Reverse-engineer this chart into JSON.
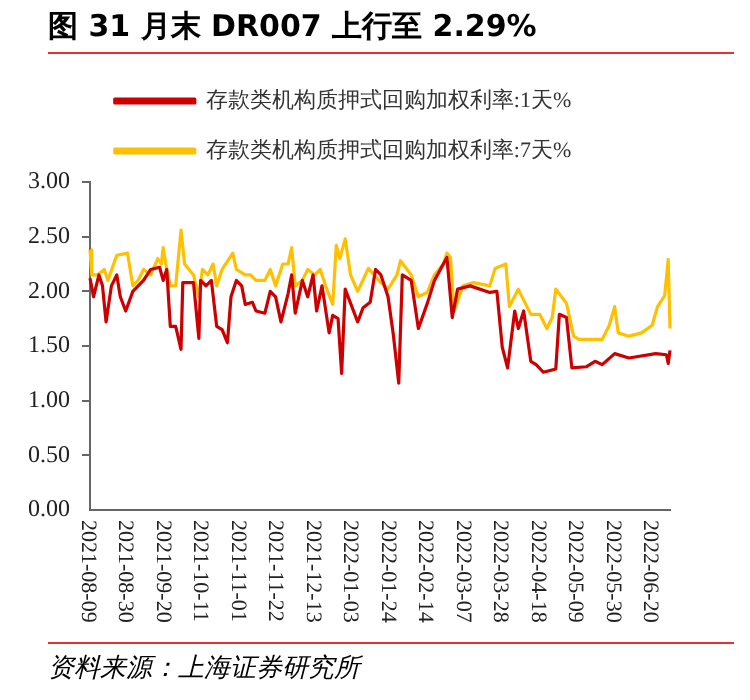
{
  "chart_data": {
    "type": "line",
    "title": "图 31 月末 DR007 上行至 2.29%",
    "legend": "top",
    "grid": false,
    "marker": "none",
    "line_style": "solid",
    "xlim": [
      "2021-08-09",
      "2022-06-30"
    ],
    "xticks": [
      "2021-08-09",
      "2021-08-30",
      "2021-09-20",
      "2021-10-11",
      "2021-11-01",
      "2021-11-22",
      "2021-12-13",
      "2022-01-03",
      "2022-01-24",
      "2022-02-14",
      "2022-03-07",
      "2022-03-28",
      "2022-04-18",
      "2022-05-09",
      "2022-05-30",
      "2022-06-20"
    ],
    "ylim": [
      0,
      3
    ],
    "yticks": [
      {
        "value": 0,
        "label": "0.00"
      },
      {
        "value": 0.5,
        "label": "0.50"
      },
      {
        "value": 1,
        "label": "1.00"
      },
      {
        "value": 1.5,
        "label": "1.50"
      },
      {
        "value": 2,
        "label": "2.00"
      },
      {
        "value": 2.5,
        "label": "2.50"
      },
      {
        "value": 3,
        "label": "3.00"
      }
    ],
    "series": [
      {
        "name": "存款类机构质押式回购加权利率:1天%",
        "color": "#cc0000",
        "x": [
          "2021-08-09",
          "2021-08-11",
          "2021-08-14",
          "2021-08-16",
          "2021-08-18",
          "2021-08-21",
          "2021-08-24",
          "2021-08-26",
          "2021-08-29",
          "2021-09-02",
          "2021-09-05",
          "2021-09-08",
          "2021-09-12",
          "2021-09-17",
          "2021-09-19",
          "2021-09-21",
          "2021-09-23",
          "2021-09-26",
          "2021-09-29",
          "2021-09-30",
          "2021-10-06",
          "2021-10-09",
          "2021-10-10",
          "2021-10-13",
          "2021-10-16",
          "2021-10-19",
          "2021-10-22",
          "2021-10-25",
          "2021-10-27",
          "2021-10-30",
          "2021-11-02",
          "2021-11-04",
          "2021-11-08",
          "2021-11-10",
          "2021-11-15",
          "2021-11-18",
          "2021-11-21",
          "2021-11-24",
          "2021-11-28",
          "2021-11-30",
          "2021-12-02",
          "2021-12-06",
          "2021-12-09",
          "2021-12-12",
          "2021-12-14",
          "2021-12-17",
          "2021-12-21",
          "2021-12-23",
          "2021-12-26",
          "2021-12-28",
          "2021-12-30",
          "2022-01-06",
          "2022-01-09",
          "2022-01-13",
          "2022-01-16",
          "2022-01-19",
          "2022-01-23",
          "2022-01-26",
          "2022-01-29",
          "2022-01-31",
          "2022-02-05",
          "2022-02-09",
          "2022-02-14",
          "2022-02-18",
          "2022-02-23",
          "2022-02-25",
          "2022-02-28",
          "2022-03-03",
          "2022-03-10",
          "2022-03-21",
          "2022-03-25",
          "2022-03-28",
          "2022-03-31",
          "2022-04-04",
          "2022-04-06",
          "2022-04-09",
          "2022-04-13",
          "2022-04-16",
          "2022-04-20",
          "2022-04-27",
          "2022-04-29",
          "2022-05-03",
          "2022-05-06",
          "2022-05-14",
          "2022-05-19",
          "2022-05-23",
          "2022-05-30",
          "2022-06-07",
          "2022-06-22",
          "2022-06-28",
          "2022-06-29",
          "2022-06-30"
        ],
        "values": [
          2.12,
          1.95,
          2.15,
          2.05,
          1.72,
          2.05,
          2.15,
          1.95,
          1.82,
          2.0,
          2.05,
          2.1,
          2.2,
          2.22,
          2.1,
          2.2,
          1.68,
          1.68,
          1.47,
          2.08,
          2.08,
          1.57,
          2.1,
          2.05,
          2.1,
          1.68,
          1.65,
          1.53,
          1.95,
          2.1,
          2.05,
          1.88,
          1.9,
          1.82,
          1.8,
          2.0,
          1.95,
          1.72,
          1.98,
          2.15,
          1.8,
          2.1,
          1.95,
          2.15,
          1.82,
          2.05,
          1.62,
          1.78,
          1.75,
          1.25,
          2.02,
          1.72,
          1.85,
          1.9,
          2.2,
          2.15,
          1.95,
          1.6,
          1.16,
          2.15,
          2.1,
          1.66,
          1.89,
          2.1,
          2.25,
          2.31,
          1.76,
          2.02,
          2.05,
          1.99,
          2.0,
          1.49,
          1.3,
          1.82,
          1.66,
          1.82,
          1.36,
          1.33,
          1.26,
          1.29,
          1.79,
          1.76,
          1.3,
          1.31,
          1.36,
          1.33,
          1.43,
          1.39,
          1.43,
          1.42,
          1.34,
          1.46
        ]
      },
      {
        "name": "存款类机构质押式回购加权利率:7天%",
        "color": "#ffc000",
        "x": [
          "2021-08-09",
          "2021-08-10",
          "2021-08-13",
          "2021-08-17",
          "2021-08-19",
          "2021-08-24",
          "2021-08-30",
          "2021-09-02",
          "2021-09-05",
          "2021-09-08",
          "2021-09-12",
          "2021-09-16",
          "2021-09-18",
          "2021-09-19",
          "2021-09-21",
          "2021-09-23",
          "2021-09-26",
          "2021-09-29",
          "2021-10-01",
          "2021-10-06",
          "2021-10-09",
          "2021-10-11",
          "2021-10-14",
          "2021-10-17",
          "2021-10-19",
          "2021-10-22",
          "2021-10-26",
          "2021-10-28",
          "2021-10-30",
          "2021-11-04",
          "2021-11-07",
          "2021-11-10",
          "2021-11-15",
          "2021-11-18",
          "2021-11-21",
          "2021-11-25",
          "2021-11-28",
          "2021-11-30",
          "2021-12-02",
          "2021-12-06",
          "2021-12-09",
          "2021-12-13",
          "2021-12-16",
          "2021-12-19",
          "2021-12-23",
          "2021-12-25",
          "2021-12-27",
          "2021-12-30",
          "2022-01-02",
          "2022-01-06",
          "2022-01-12",
          "2022-01-19",
          "2022-01-23",
          "2022-01-28",
          "2022-01-30",
          "2022-02-05",
          "2022-02-09",
          "2022-02-14",
          "2022-02-18",
          "2022-02-23",
          "2022-02-25",
          "2022-02-27",
          "2022-03-01",
          "2022-03-06",
          "2022-03-12",
          "2022-03-21",
          "2022-03-24",
          "2022-03-30",
          "2022-04-01",
          "2022-04-06",
          "2022-04-09",
          "2022-04-13",
          "2022-04-18",
          "2022-04-22",
          "2022-04-25",
          "2022-04-27",
          "2022-05-03",
          "2022-05-07",
          "2022-05-10",
          "2022-05-19",
          "2022-05-23",
          "2022-05-27",
          "2022-05-30",
          "2022-06-01",
          "2022-06-07",
          "2022-06-14",
          "2022-06-20",
          "2022-06-23",
          "2022-06-27",
          "2022-06-29",
          "2022-06-30"
        ],
        "values": [
          2.38,
          2.15,
          2.15,
          2.2,
          2.1,
          2.33,
          2.35,
          2.05,
          2.1,
          2.2,
          2.15,
          2.3,
          2.25,
          2.4,
          2.2,
          2.05,
          2.05,
          2.56,
          2.25,
          2.15,
          1.95,
          2.2,
          2.15,
          2.25,
          2.05,
          2.2,
          2.3,
          2.35,
          2.2,
          2.15,
          2.15,
          2.1,
          2.1,
          2.2,
          2.05,
          2.25,
          2.25,
          2.4,
          2.05,
          2.1,
          2.2,
          2.15,
          2.2,
          2.05,
          1.88,
          2.42,
          2.3,
          2.48,
          2.15,
          2.0,
          2.21,
          2.08,
          2.02,
          2.15,
          2.28,
          2.15,
          1.95,
          1.99,
          2.15,
          2.25,
          2.35,
          2.31,
          1.82,
          2.05,
          2.08,
          2.05,
          2.21,
          2.25,
          1.86,
          2.02,
          1.92,
          1.79,
          1.79,
          1.66,
          1.76,
          2.02,
          1.89,
          1.59,
          1.56,
          1.56,
          1.56,
          1.69,
          1.86,
          1.62,
          1.59,
          1.62,
          1.69,
          1.86,
          1.96,
          2.29,
          1.66
        ]
      }
    ],
    "annotations": [
      "资料来源：上海证券研究所"
    ]
  }
}
